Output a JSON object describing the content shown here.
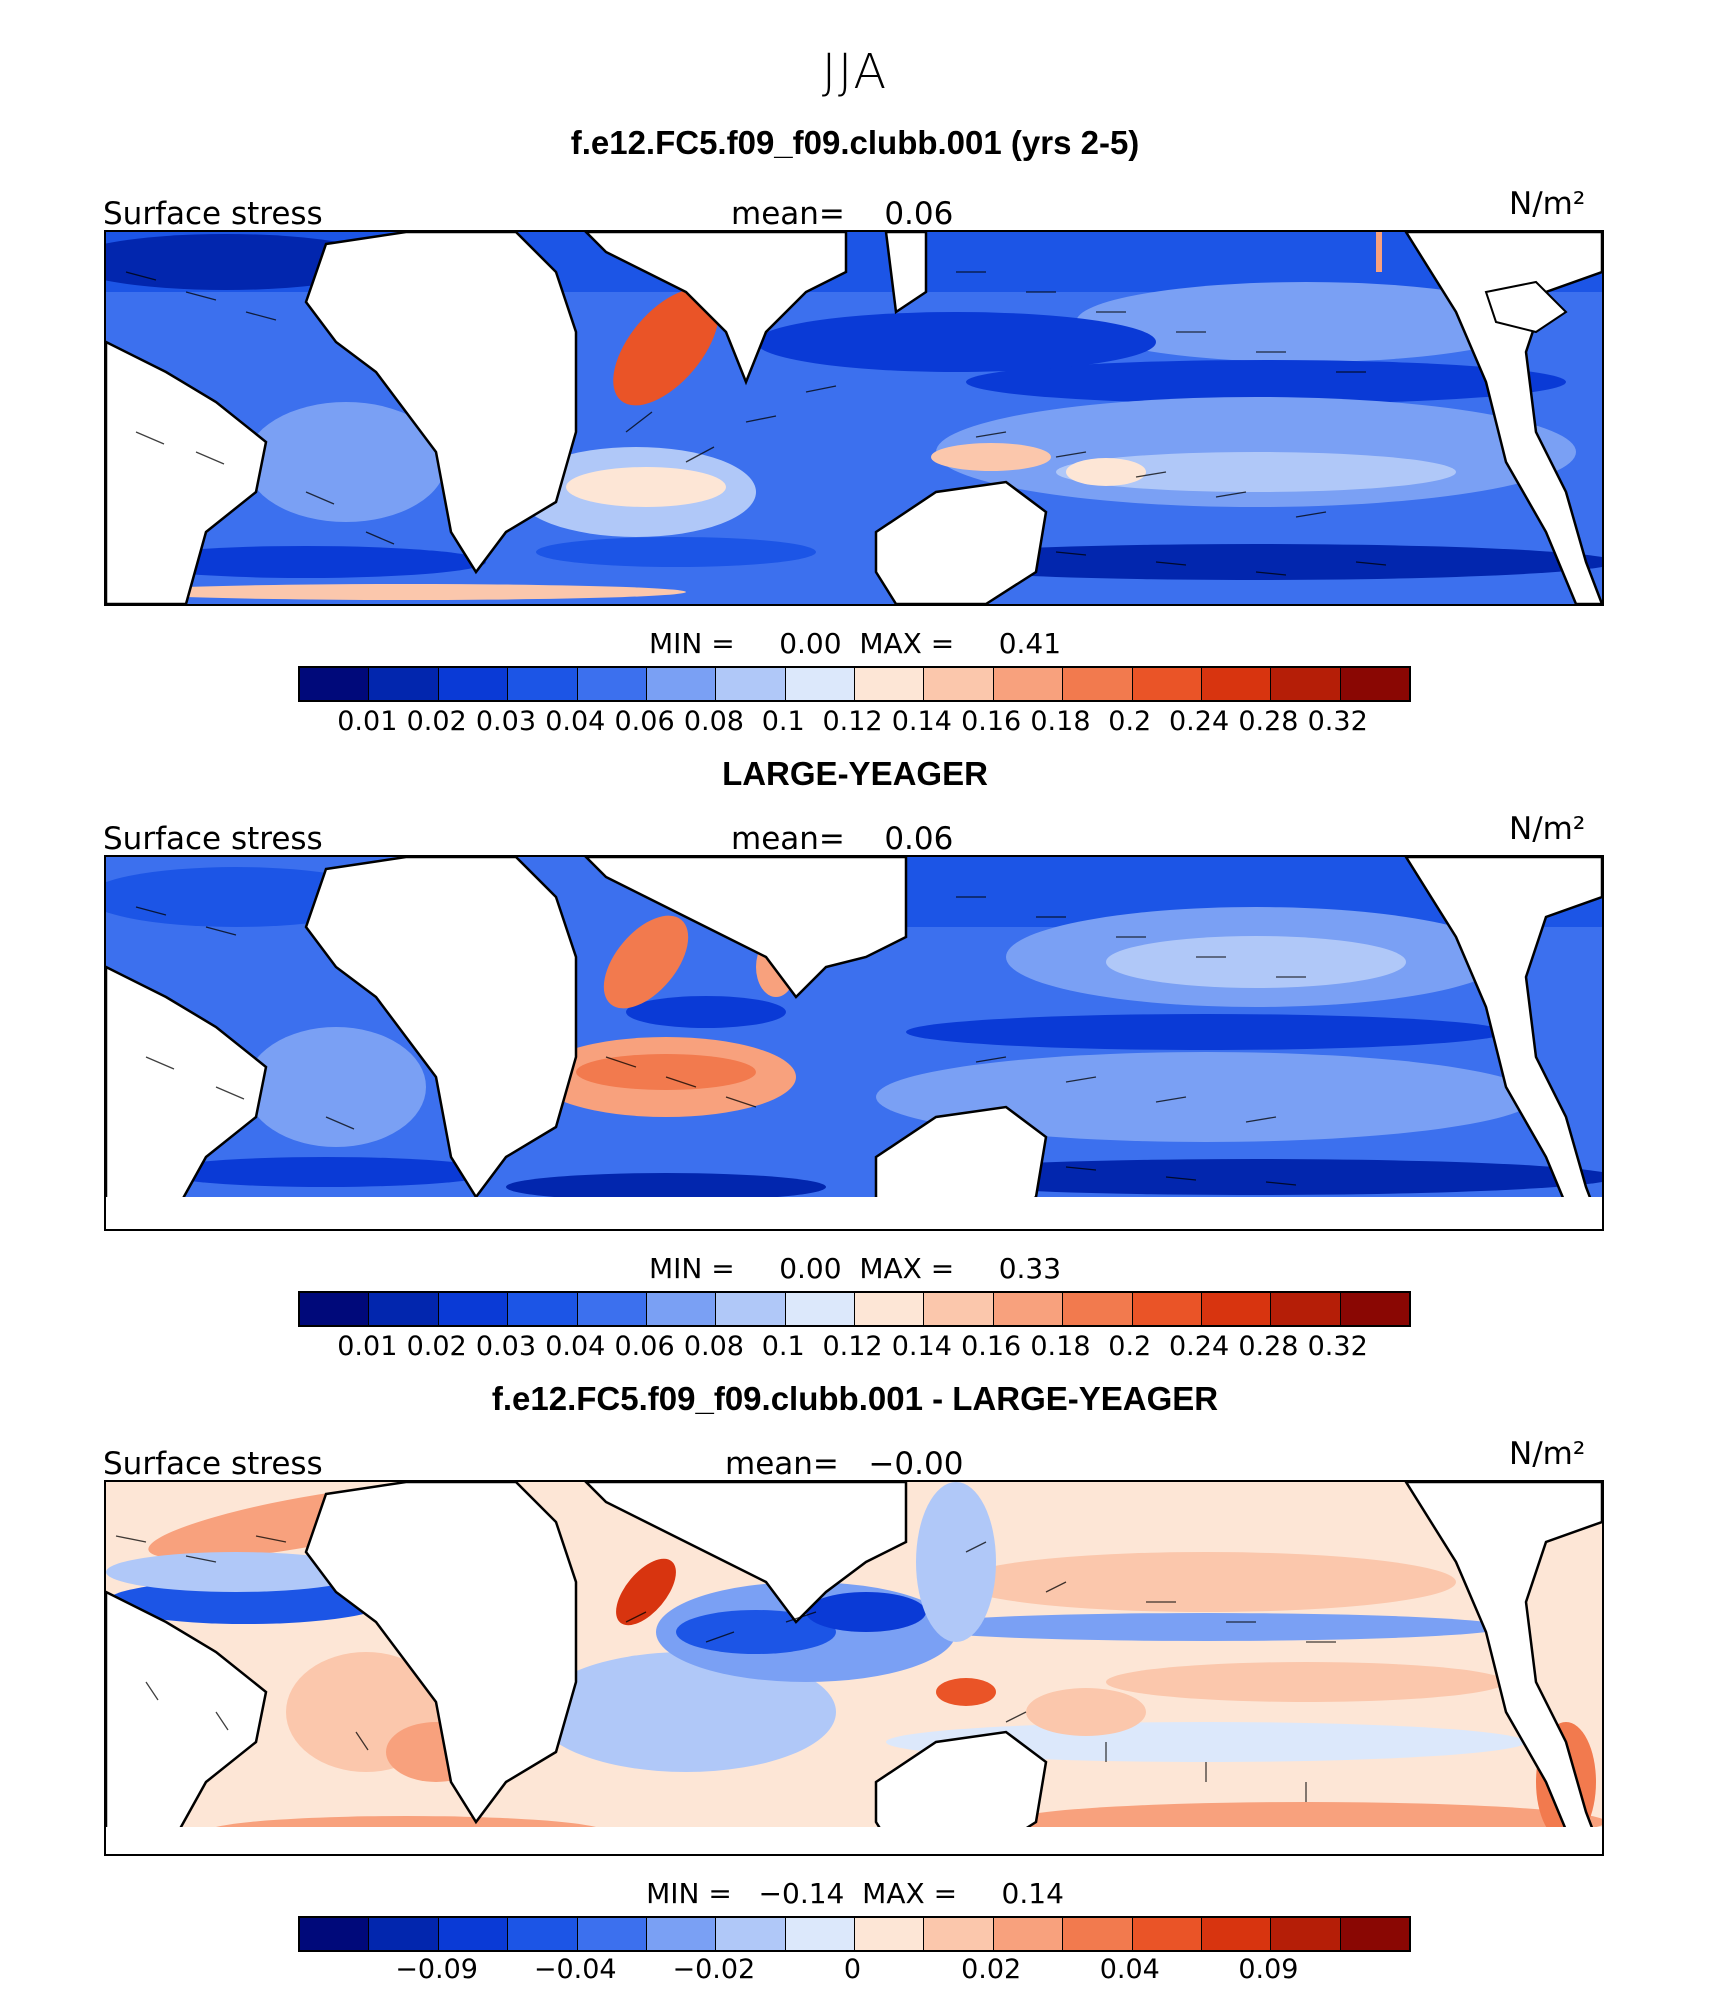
{
  "season": "JJA",
  "common": {
    "variable": "Surface stress",
    "mean_prefix": "mean=",
    "units": "N/m²",
    "min_label": "MIN =",
    "max_label": "MAX ="
  },
  "panels": [
    {
      "title": "f.e12.FC5.f09_f09.clubb.001 (yrs 2-5)",
      "mean": "0.06",
      "min": "0.00",
      "max": "0.41",
      "colorbar": {
        "colors": [
          "#00097a",
          "#0226ae",
          "#0a3ad6",
          "#1c55e6",
          "#3c70ee",
          "#7aa0f4",
          "#b0c8f8",
          "#dce8fb",
          "#fde6d6",
          "#fbc7ac",
          "#f8a17d",
          "#f27a4e",
          "#ea5427",
          "#d8340f",
          "#b51e07",
          "#8a0703"
        ],
        "tick_labels": [
          "0.01",
          "0.02",
          "0.03",
          "0.04",
          "0.06",
          "0.08",
          "0.1",
          "0.12",
          "0.14",
          "0.16",
          "0.18",
          "0.2",
          "0.24",
          "0.28",
          "0.32"
        ]
      }
    },
    {
      "title": "LARGE-YEAGER",
      "mean": "0.06",
      "min": "0.00",
      "max": "0.33",
      "colorbar": {
        "colors": [
          "#00097a",
          "#0226ae",
          "#0a3ad6",
          "#1c55e6",
          "#3c70ee",
          "#7aa0f4",
          "#b0c8f8",
          "#dce8fb",
          "#fde6d6",
          "#fbc7ac",
          "#f8a17d",
          "#f27a4e",
          "#ea5427",
          "#d8340f",
          "#b51e07",
          "#8a0703"
        ],
        "tick_labels": [
          "0.01",
          "0.02",
          "0.03",
          "0.04",
          "0.06",
          "0.08",
          "0.1",
          "0.12",
          "0.14",
          "0.16",
          "0.18",
          "0.2",
          "0.24",
          "0.28",
          "0.32"
        ]
      }
    },
    {
      "title": "f.e12.FC5.f09_f09.clubb.001 - LARGE-YEAGER",
      "mean": "−0.00",
      "min": "−0.14",
      "max": "0.14",
      "colorbar": {
        "colors": [
          "#00097a",
          "#0226ae",
          "#0a3ad6",
          "#1c55e6",
          "#3c70ee",
          "#7aa0f4",
          "#b0c8f8",
          "#dce8fb",
          "#fde6d6",
          "#fbc7ac",
          "#f8a17d",
          "#f27a4e",
          "#ea5427",
          "#d8340f",
          "#b51e07",
          "#8a0703"
        ],
        "tick_labels": [
          "−0.09",
          "−0.04",
          "−0.02",
          "0",
          "0.02",
          "0.04",
          "0.09"
        ],
        "tick_boundaries": [
          2,
          4,
          6,
          8,
          10,
          12,
          14
        ]
      }
    }
  ]
}
